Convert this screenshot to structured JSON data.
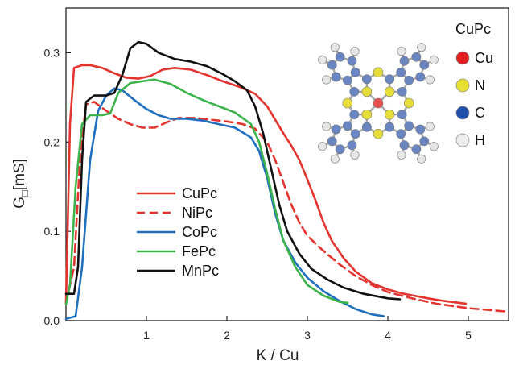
{
  "chart_data": {
    "type": "line",
    "title": "",
    "xlabel": "K / Cu",
    "ylabel_main": "G",
    "ylabel_subscript": "□",
    "ylabel_unit": "[mS]",
    "xlim": [
      0,
      5.5
    ],
    "ylim": [
      0,
      0.35
    ],
    "x_ticks": [
      1,
      2,
      3,
      4,
      5
    ],
    "y_ticks": [
      0.0,
      0.1,
      0.2,
      0.3
    ],
    "y_tick_labels": [
      "0.0",
      "0.1",
      "0.2",
      "0.3"
    ],
    "grid": false,
    "legend_position": "center-left",
    "series": [
      {
        "name": "CuPc",
        "color": "#e3342f",
        "dash": "solid",
        "points": [
          [
            0,
            0.02
          ],
          [
            0.05,
            0.22
          ],
          [
            0.1,
            0.283
          ],
          [
            0.2,
            0.286
          ],
          [
            0.3,
            0.286
          ],
          [
            0.45,
            0.283
          ],
          [
            0.6,
            0.277
          ],
          [
            0.75,
            0.272
          ],
          [
            0.9,
            0.271
          ],
          [
            1.05,
            0.274
          ],
          [
            1.2,
            0.281
          ],
          [
            1.35,
            0.283
          ],
          [
            1.55,
            0.281
          ],
          [
            1.75,
            0.275
          ],
          [
            1.95,
            0.268
          ],
          [
            2.15,
            0.262
          ],
          [
            2.35,
            0.254
          ],
          [
            2.5,
            0.24
          ],
          [
            2.6,
            0.225
          ],
          [
            2.7,
            0.21
          ],
          [
            2.8,
            0.196
          ],
          [
            2.9,
            0.18
          ],
          [
            3.0,
            0.158
          ],
          [
            3.1,
            0.135
          ],
          [
            3.2,
            0.11
          ],
          [
            3.3,
            0.09
          ],
          [
            3.45,
            0.07
          ],
          [
            3.6,
            0.055
          ],
          [
            3.8,
            0.042
          ],
          [
            4.0,
            0.035
          ],
          [
            4.2,
            0.03
          ],
          [
            4.5,
            0.025
          ],
          [
            4.7,
            0.022
          ],
          [
            4.97,
            0.019
          ]
        ]
      },
      {
        "name": "NiPc",
        "color": "#e3342f",
        "dash": "dashed",
        "points": [
          [
            0,
            0.02
          ],
          [
            0.1,
            0.06
          ],
          [
            0.18,
            0.19
          ],
          [
            0.25,
            0.242
          ],
          [
            0.35,
            0.245
          ],
          [
            0.5,
            0.235
          ],
          [
            0.65,
            0.226
          ],
          [
            0.8,
            0.22
          ],
          [
            0.95,
            0.216
          ],
          [
            1.1,
            0.216
          ],
          [
            1.25,
            0.222
          ],
          [
            1.4,
            0.227
          ],
          [
            1.6,
            0.227
          ],
          [
            1.8,
            0.225
          ],
          [
            2.0,
            0.223
          ],
          [
            2.2,
            0.22
          ],
          [
            2.35,
            0.215
          ],
          [
            2.5,
            0.2
          ],
          [
            2.6,
            0.18
          ],
          [
            2.7,
            0.155
          ],
          [
            2.8,
            0.13
          ],
          [
            2.9,
            0.11
          ],
          [
            3.0,
            0.095
          ],
          [
            3.2,
            0.078
          ],
          [
            3.4,
            0.063
          ],
          [
            3.6,
            0.05
          ],
          [
            3.8,
            0.04
          ],
          [
            4.0,
            0.032
          ],
          [
            4.3,
            0.025
          ],
          [
            4.6,
            0.019
          ],
          [
            5.0,
            0.014
          ],
          [
            5.5,
            0.01
          ]
        ]
      },
      {
        "name": "CoPc",
        "color": "#1f6fbf",
        "dash": "solid",
        "points": [
          [
            0,
            0.002
          ],
          [
            0.12,
            0.005
          ],
          [
            0.2,
            0.06
          ],
          [
            0.3,
            0.18
          ],
          [
            0.4,
            0.235
          ],
          [
            0.5,
            0.252
          ],
          [
            0.6,
            0.26
          ],
          [
            0.7,
            0.258
          ],
          [
            0.85,
            0.247
          ],
          [
            1.0,
            0.237
          ],
          [
            1.15,
            0.23
          ],
          [
            1.3,
            0.226
          ],
          [
            1.5,
            0.226
          ],
          [
            1.7,
            0.224
          ],
          [
            1.9,
            0.22
          ],
          [
            2.1,
            0.216
          ],
          [
            2.3,
            0.205
          ],
          [
            2.4,
            0.19
          ],
          [
            2.5,
            0.16
          ],
          [
            2.6,
            0.12
          ],
          [
            2.7,
            0.09
          ],
          [
            2.85,
            0.065
          ],
          [
            3.0,
            0.048
          ],
          [
            3.2,
            0.033
          ],
          [
            3.4,
            0.022
          ],
          [
            3.6,
            0.013
          ],
          [
            3.8,
            0.007
          ],
          [
            3.95,
            0.005
          ]
        ]
      },
      {
        "name": "FePc",
        "color": "#3cb44b",
        "dash": "solid",
        "points": [
          [
            0,
            0.018
          ],
          [
            0.05,
            0.04
          ],
          [
            0.12,
            0.15
          ],
          [
            0.2,
            0.22
          ],
          [
            0.3,
            0.23
          ],
          [
            0.45,
            0.23
          ],
          [
            0.55,
            0.232
          ],
          [
            0.65,
            0.255
          ],
          [
            0.8,
            0.266
          ],
          [
            0.95,
            0.268
          ],
          [
            1.1,
            0.27
          ],
          [
            1.3,
            0.265
          ],
          [
            1.5,
            0.255
          ],
          [
            1.7,
            0.247
          ],
          [
            1.9,
            0.24
          ],
          [
            2.1,
            0.233
          ],
          [
            2.3,
            0.22
          ],
          [
            2.4,
            0.2
          ],
          [
            2.5,
            0.165
          ],
          [
            2.6,
            0.125
          ],
          [
            2.7,
            0.09
          ],
          [
            2.85,
            0.06
          ],
          [
            3.0,
            0.04
          ],
          [
            3.2,
            0.028
          ],
          [
            3.4,
            0.021
          ],
          [
            3.5,
            0.02
          ]
        ]
      },
      {
        "name": "MnPc",
        "color": "#111111",
        "dash": "solid",
        "points": [
          [
            0,
            0.03
          ],
          [
            0.1,
            0.03
          ],
          [
            0.15,
            0.06
          ],
          [
            0.2,
            0.18
          ],
          [
            0.25,
            0.245
          ],
          [
            0.35,
            0.252
          ],
          [
            0.5,
            0.252
          ],
          [
            0.6,
            0.255
          ],
          [
            0.7,
            0.275
          ],
          [
            0.8,
            0.305
          ],
          [
            0.9,
            0.312
          ],
          [
            1.0,
            0.31
          ],
          [
            1.15,
            0.3
          ],
          [
            1.35,
            0.293
          ],
          [
            1.55,
            0.29
          ],
          [
            1.75,
            0.285
          ],
          [
            1.95,
            0.276
          ],
          [
            2.1,
            0.268
          ],
          [
            2.25,
            0.258
          ],
          [
            2.35,
            0.24
          ],
          [
            2.45,
            0.21
          ],
          [
            2.55,
            0.17
          ],
          [
            2.65,
            0.13
          ],
          [
            2.75,
            0.1
          ],
          [
            2.9,
            0.075
          ],
          [
            3.05,
            0.058
          ],
          [
            3.25,
            0.046
          ],
          [
            3.45,
            0.037
          ],
          [
            3.7,
            0.03
          ],
          [
            4.0,
            0.025
          ],
          [
            4.15,
            0.024
          ]
        ]
      }
    ]
  },
  "inset": {
    "title": "CuPc",
    "legend": [
      {
        "label": "Cu",
        "color": "#e02020"
      },
      {
        "label": "N",
        "color": "#e8e030"
      },
      {
        "label": "C",
        "color": "#1f4fa8"
      },
      {
        "label": "H",
        "color": "#eeeeee"
      }
    ],
    "atom_colors": {
      "Cu": "#e85050",
      "N": "#e6dc3a",
      "C": "#6a86c2",
      "H": "#e6e6e6",
      "bond": "#a8a8a8"
    }
  }
}
